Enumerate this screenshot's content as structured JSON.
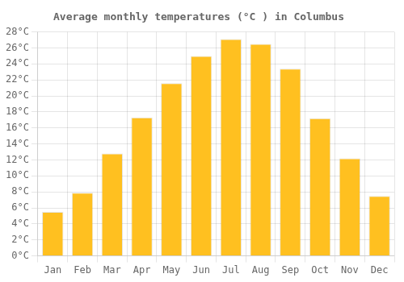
{
  "chart_data": {
    "type": "bar",
    "title": "Average monthly temperatures (°C ) in Columbus",
    "categories": [
      "Jan",
      "Feb",
      "Mar",
      "Apr",
      "May",
      "Jun",
      "Jul",
      "Aug",
      "Sep",
      "Oct",
      "Nov",
      "Dec"
    ],
    "values": [
      5.5,
      7.9,
      12.8,
      17.3,
      21.6,
      25.0,
      27.1,
      26.5,
      23.4,
      17.2,
      12.2,
      7.5
    ],
    "color": "#FFC020",
    "ylim": [
      0,
      28
    ],
    "yticks": [
      {
        "value": 0,
        "label": "0°C"
      },
      {
        "value": 2,
        "label": "2°C"
      },
      {
        "value": 4,
        "label": "4°C"
      },
      {
        "value": 6,
        "label": "6°C"
      },
      {
        "value": 8,
        "label": "8°C"
      },
      {
        "value": 10,
        "label": "10°C"
      },
      {
        "value": 12,
        "label": "12°C"
      },
      {
        "value": 14,
        "label": "14°C"
      },
      {
        "value": 16,
        "label": "16°C"
      },
      {
        "value": 18,
        "label": "18°C"
      },
      {
        "value": 20,
        "label": "20°C"
      },
      {
        "value": 22,
        "label": "22°C"
      },
      {
        "value": 24,
        "label": "24°C"
      },
      {
        "value": 26,
        "label": "26°C"
      },
      {
        "value": 28,
        "label": "28°C"
      }
    ],
    "grid": true
  }
}
